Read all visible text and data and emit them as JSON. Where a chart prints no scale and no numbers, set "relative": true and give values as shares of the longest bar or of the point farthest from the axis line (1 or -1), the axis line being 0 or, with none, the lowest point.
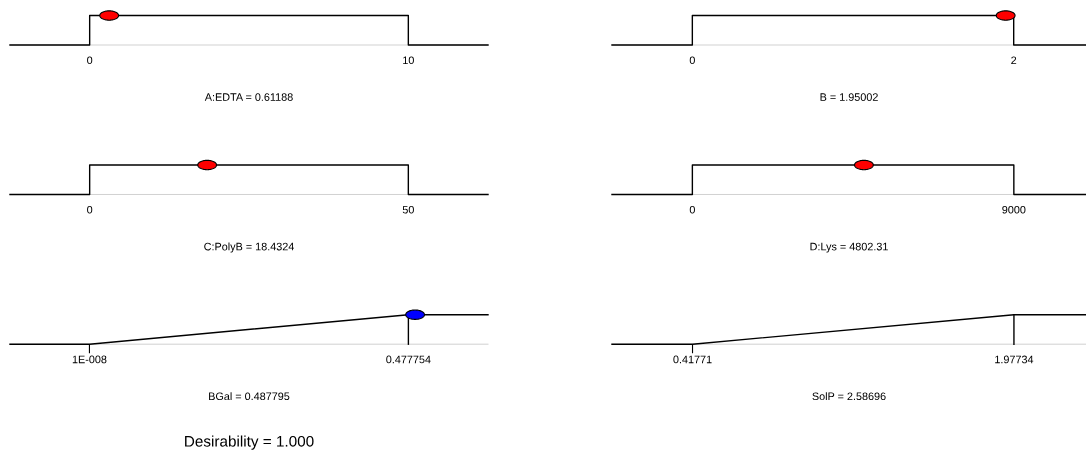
{
  "chart_data": [
    {
      "type": "line",
      "xlabel": "A:EDTA = 0.61188",
      "relative": true,
      "tick_labels": "x",
      "xlim": [
        -2.5,
        12.5
      ],
      "xticks": [
        0,
        10
      ],
      "series": [
        {
          "color": "#000000",
          "x": [
            -2.5,
            0,
            0,
            10,
            10,
            12.5
          ],
          "values": [
            0,
            0,
            1,
            1,
            0,
            0
          ]
        },
        {
          "type": "scatter",
          "marker": "circle",
          "color": "#ff0000",
          "x": [
            0.61188
          ],
          "values": [
            1
          ]
        }
      ]
    },
    {
      "type": "line",
      "xlabel": "B = 1.95002",
      "relative": true,
      "tick_labels": "x",
      "xlim": [
        -0.5,
        2.45
      ],
      "xticks": [
        0,
        2
      ],
      "series": [
        {
          "color": "#000000",
          "x": [
            -0.5,
            0,
            0,
            2,
            2,
            2.45
          ],
          "values": [
            0,
            0,
            1,
            1,
            0,
            0
          ]
        },
        {
          "type": "scatter",
          "marker": "circle",
          "color": "#ff0000",
          "x": [
            1.95002
          ],
          "values": [
            1
          ]
        }
      ]
    },
    {
      "type": "line",
      "xlabel": "C:PolyB = 18.4324",
      "relative": true,
      "tick_labels": "x",
      "xlim": [
        -12.5,
        62.5
      ],
      "xticks": [
        0,
        50
      ],
      "series": [
        {
          "color": "#000000",
          "x": [
            -12.5,
            0,
            0,
            50,
            50,
            62.5
          ],
          "values": [
            0,
            0,
            1,
            1,
            0,
            0
          ]
        },
        {
          "type": "scatter",
          "marker": "circle",
          "color": "#ff0000",
          "x": [
            18.4324
          ],
          "values": [
            1
          ]
        }
      ]
    },
    {
      "type": "line",
      "xlabel": "D:Lys = 4802.31",
      "relative": true,
      "tick_labels": "x",
      "xlim": [
        -2250,
        11020
      ],
      "xticks": [
        0,
        9000
      ],
      "series": [
        {
          "color": "#000000",
          "x": [
            -2250,
            0,
            0,
            9000,
            9000,
            11020
          ],
          "values": [
            0,
            0,
            1,
            1,
            0,
            0
          ]
        },
        {
          "type": "scatter",
          "marker": "circle",
          "color": "#ff0000",
          "x": [
            4802.31
          ],
          "values": [
            1
          ]
        }
      ]
    },
    {
      "type": "line",
      "xlabel": "BGal = 0.487795",
      "relative": true,
      "tick_labels": "x",
      "xlim": [
        -0.119,
        0.597
      ],
      "xticks": [
        {
          "value": 1e-08,
          "label": "1E-008"
        },
        0.477754
      ],
      "ref_lines": [
        {
          "axis": "x",
          "value": 0.477754
        }
      ],
      "series": [
        {
          "color": "#000000",
          "x": [
            -0.119,
            1e-08,
            0.477754,
            0.597
          ],
          "values": [
            0,
            0,
            1,
            1
          ]
        },
        {
          "type": "scatter",
          "marker": "circle",
          "color": "#0000ff",
          "x": [
            0.487795
          ],
          "values": [
            1
          ]
        }
      ]
    },
    {
      "type": "line",
      "xlabel": "SolP = 2.58696",
      "relative": true,
      "tick_labels": "x",
      "xlim": [
        0.027,
        2.327
      ],
      "xticks": [
        0.41771,
        1.97734
      ],
      "ref_lines": [
        {
          "axis": "x",
          "value": 1.97734
        }
      ],
      "series": [
        {
          "color": "#000000",
          "x": [
            0.027,
            0.41771,
            1.97734,
            2.327
          ],
          "values": [
            0,
            0,
            1,
            1
          ]
        }
      ]
    },
    {
      "type": "other",
      "title": "Desirability = 1.000"
    }
  ]
}
